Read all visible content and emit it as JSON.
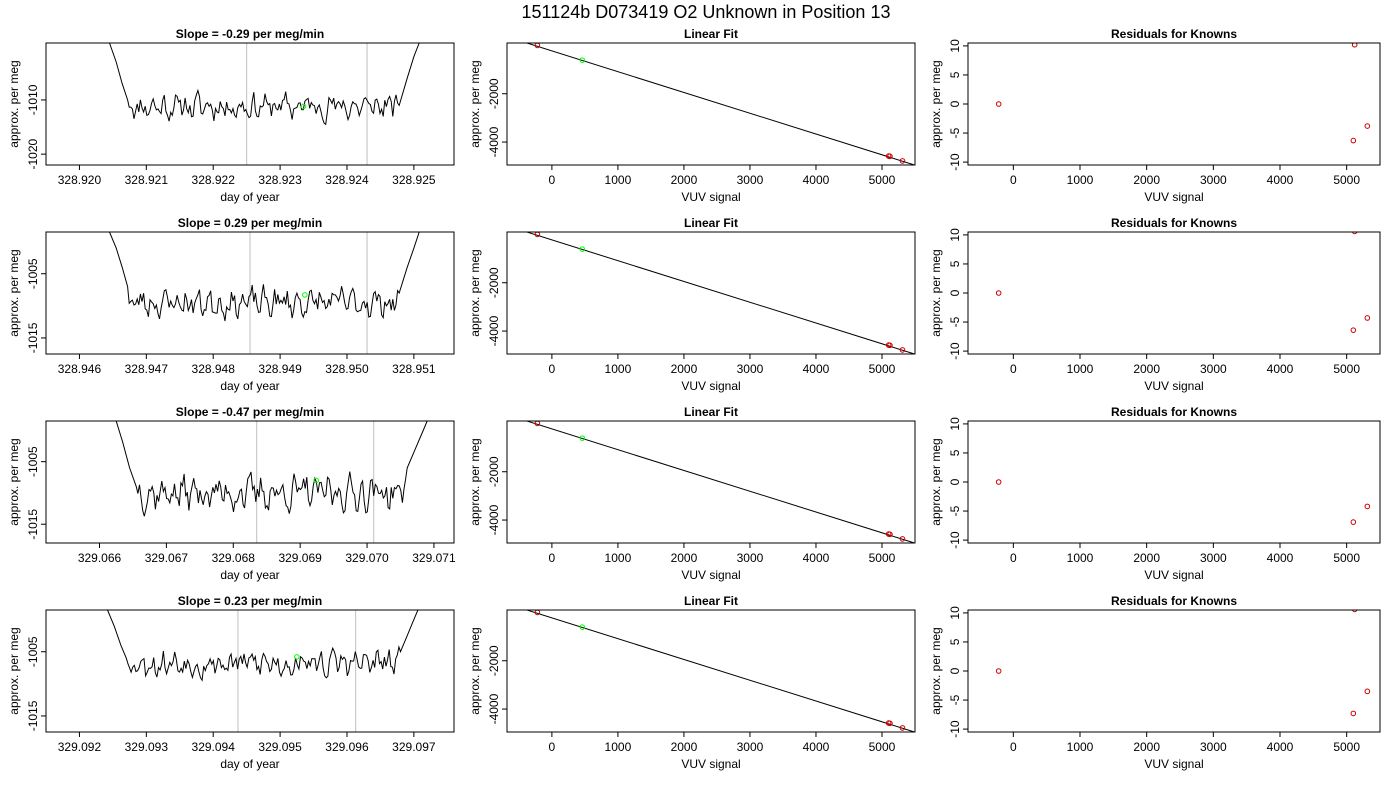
{
  "figure": {
    "title": "151124b      D073419    O2 Unknown in Position  13"
  },
  "chart_data": [
    {
      "type": "line",
      "row": 0,
      "col": 0,
      "title": "Slope =  -0.29  per meg/min",
      "xlabel": "day of year",
      "ylabel": "approx. per meg",
      "xlim": [
        328.9195,
        328.9256
      ],
      "ylim": [
        -1022,
        -999.5
      ],
      "xticks": [
        328.92,
        328.921,
        328.922,
        328.923,
        328.924,
        328.925
      ],
      "xtick_labels": [
        "328.920",
        "328.921",
        "328.922",
        "328.923",
        "328.924",
        "328.925"
      ],
      "yticks": [
        -1010,
        -1020
      ],
      "ytick_labels": [
        "-1010",
        "-1020"
      ],
      "vlines": [
        328.9225,
        328.9243
      ],
      "marker": {
        "x": 328.92335,
        "y": -1011.2,
        "color": "#00ff00"
      },
      "trace": {
        "x_start": 328.92072,
        "x_end": 328.92478,
        "mean": -1011.2,
        "noise": 1.7,
        "seed": 11,
        "start_tail": [
          [
            328.92045,
            -999.5
          ],
          [
            328.92055,
            -1003
          ],
          [
            328.92064,
            -1007
          ],
          [
            328.92072,
            -1010
          ]
        ],
        "end_tail": [
          [
            328.92478,
            -1011
          ],
          [
            328.9249,
            -1006
          ],
          [
            328.925,
            -1002
          ],
          [
            328.92508,
            -999.5
          ]
        ]
      }
    },
    {
      "type": "scatter",
      "row": 0,
      "col": 1,
      "title": "Linear Fit",
      "xlabel": "VUV signal",
      "ylabel": "approx. per meg",
      "xlim": [
        -680,
        5500
      ],
      "ylim": [
        -4950,
        100
      ],
      "xticks": [
        0,
        1000,
        2000,
        3000,
        4000,
        5000
      ],
      "xtick_labels": [
        "0",
        "1000",
        "2000",
        "3000",
        "4000",
        "5000"
      ],
      "yticks": [
        -2000,
        -4000
      ],
      "ytick_labels": [
        "-2000",
        "-4000"
      ],
      "fit_line": [
        [
          -500,
          204
        ],
        [
          5500,
          -4958
        ]
      ],
      "knowns": [
        {
          "x": -220,
          "y": 0
        },
        {
          "x": 5100,
          "y": -4580
        },
        {
          "x": 5120,
          "y": -4590
        },
        {
          "x": 5310,
          "y": -4780
        }
      ],
      "unknown": {
        "x": 460,
        "y": -610
      }
    },
    {
      "type": "scatter",
      "row": 0,
      "col": 2,
      "title": "Residuals for Knowns",
      "xlabel": "VUV signal",
      "ylabel": "approx. per meg",
      "xlim": [
        -680,
        5500
      ],
      "ylim": [
        -10.5,
        10.5
      ],
      "xticks": [
        0,
        1000,
        2000,
        3000,
        4000,
        5000
      ],
      "xtick_labels": [
        "0",
        "1000",
        "2000",
        "3000",
        "4000",
        "5000"
      ],
      "yticks": [
        10,
        5,
        0,
        -5,
        -10
      ],
      "ytick_labels": [
        "10",
        "5",
        "0",
        "-5",
        "-10"
      ],
      "points": [
        {
          "x": -220,
          "y": 0
        },
        {
          "x": 5120,
          "y": 10.2
        },
        {
          "x": 5100,
          "y": -6.3
        },
        {
          "x": 5310,
          "y": -3.8
        }
      ]
    },
    {
      "type": "line",
      "row": 1,
      "col": 0,
      "title": "Slope =  0.29  per meg/min",
      "xlabel": "day of year",
      "ylabel": "approx. per meg",
      "xlim": [
        328.9455,
        328.9516
      ],
      "ylim": [
        -1017.5,
        -998.5
      ],
      "xticks": [
        328.946,
        328.947,
        328.948,
        328.949,
        328.95,
        328.951
      ],
      "xtick_labels": [
        "328.946",
        "328.947",
        "328.948",
        "328.949",
        "328.950",
        "328.951"
      ],
      "yticks": [
        -1005,
        -1015
      ],
      "ytick_labels": [
        "-1005",
        "-1015"
      ],
      "vlines": [
        328.94855,
        328.9503
      ],
      "marker": {
        "x": 328.94937,
        "y": -1008.3,
        "color": "#00ff00"
      },
      "trace": {
        "x_start": 328.94672,
        "x_end": 328.95078,
        "mean": -1009.5,
        "noise": 1.6,
        "seed": 23,
        "start_tail": [
          [
            328.94645,
            -998.5
          ],
          [
            328.94655,
            -1001
          ],
          [
            328.94664,
            -1004
          ],
          [
            328.94672,
            -1007
          ]
        ],
        "end_tail": [
          [
            328.95078,
            -1008
          ],
          [
            328.9509,
            -1004
          ],
          [
            328.951,
            -1001
          ],
          [
            328.95108,
            -998.5
          ]
        ]
      }
    },
    {
      "type": "scatter",
      "row": 1,
      "col": 1,
      "title": "Linear Fit",
      "xlabel": "VUV signal",
      "ylabel": "approx. per meg",
      "xlim": [
        -680,
        5500
      ],
      "ylim": [
        -4950,
        100
      ],
      "xticks": [
        0,
        1000,
        2000,
        3000,
        4000,
        5000
      ],
      "xtick_labels": [
        "0",
        "1000",
        "2000",
        "3000",
        "4000",
        "5000"
      ],
      "yticks": [
        -2000,
        -4000
      ],
      "ytick_labels": [
        "-2000",
        "-4000"
      ],
      "fit_line": [
        [
          -500,
          204
        ],
        [
          5500,
          -4958
        ]
      ],
      "knowns": [
        {
          "x": -220,
          "y": 0
        },
        {
          "x": 5100,
          "y": -4580
        },
        {
          "x": 5120,
          "y": -4590
        },
        {
          "x": 5310,
          "y": -4780
        }
      ],
      "unknown": {
        "x": 460,
        "y": -610
      }
    },
    {
      "type": "scatter",
      "row": 1,
      "col": 2,
      "title": "Residuals for Knowns",
      "xlabel": "VUV signal",
      "ylabel": "approx. per meg",
      "xlim": [
        -680,
        5500
      ],
      "ylim": [
        -10.5,
        10.5
      ],
      "xticks": [
        0,
        1000,
        2000,
        3000,
        4000,
        5000
      ],
      "xtick_labels": [
        "0",
        "1000",
        "2000",
        "3000",
        "4000",
        "5000"
      ],
      "yticks": [
        10,
        5,
        0,
        -5,
        -10
      ],
      "ytick_labels": [
        "10",
        "5",
        "0",
        "-5",
        "-10"
      ],
      "points": [
        {
          "x": -220,
          "y": 0
        },
        {
          "x": 5120,
          "y": 10.6
        },
        {
          "x": 5100,
          "y": -6.4
        },
        {
          "x": 5310,
          "y": -4.3
        }
      ]
    },
    {
      "type": "line",
      "row": 2,
      "col": 0,
      "title": "Slope =  -0.47  per meg/min",
      "xlabel": "day of year",
      "ylabel": "approx. per meg",
      "xlim": [
        329.0652,
        329.0713
      ],
      "ylim": [
        -1018,
        -998.5
      ],
      "xticks": [
        329.066,
        329.067,
        329.068,
        329.069,
        329.07,
        329.071
      ],
      "xtick_labels": [
        "329.066",
        "329.067",
        "329.068",
        "329.069",
        "329.070",
        "329.071"
      ],
      "yticks": [
        -1005,
        -1015
      ],
      "ytick_labels": [
        "-1005",
        "-1015"
      ],
      "vlines": [
        329.06835,
        329.0701
      ],
      "marker": {
        "x": 329.06924,
        "y": -1008.0,
        "color": "#00ff00"
      },
      "trace": {
        "x_start": 329.06655,
        "x_end": 329.0706,
        "mean": -1010.0,
        "noise": 1.9,
        "seed": 37,
        "start_tail": [
          [
            329.06625,
            -998.5
          ],
          [
            329.06635,
            -1002
          ],
          [
            329.06645,
            -1006
          ],
          [
            329.06655,
            -1009
          ]
        ],
        "end_tail": [
          [
            329.0706,
            -1006
          ],
          [
            329.07072,
            -1003
          ],
          [
            329.07082,
            -1000.5
          ],
          [
            329.0709,
            -998.5
          ]
        ]
      }
    },
    {
      "type": "scatter",
      "row": 2,
      "col": 1,
      "title": "Linear Fit",
      "xlabel": "VUV signal",
      "ylabel": "approx. per meg",
      "xlim": [
        -680,
        5500
      ],
      "ylim": [
        -4950,
        100
      ],
      "xticks": [
        0,
        1000,
        2000,
        3000,
        4000,
        5000
      ],
      "xtick_labels": [
        "0",
        "1000",
        "2000",
        "3000",
        "4000",
        "5000"
      ],
      "yticks": [
        -2000,
        -4000
      ],
      "ytick_labels": [
        "-2000",
        "-4000"
      ],
      "fit_line": [
        [
          -500,
          204
        ],
        [
          5500,
          -4958
        ]
      ],
      "knowns": [
        {
          "x": -220,
          "y": 0
        },
        {
          "x": 5100,
          "y": -4580
        },
        {
          "x": 5120,
          "y": -4590
        },
        {
          "x": 5310,
          "y": -4780
        }
      ],
      "unknown": {
        "x": 460,
        "y": -610
      }
    },
    {
      "type": "scatter",
      "row": 2,
      "col": 2,
      "title": "Residuals for Knowns",
      "xlabel": "VUV signal",
      "ylabel": "approx. per meg",
      "xlim": [
        -680,
        5500
      ],
      "ylim": [
        -10.5,
        10.5
      ],
      "xticks": [
        0,
        1000,
        2000,
        3000,
        4000,
        5000
      ],
      "xtick_labels": [
        "0",
        "1000",
        "2000",
        "3000",
        "4000",
        "5000"
      ],
      "yticks": [
        10,
        5,
        0,
        -5,
        -10
      ],
      "ytick_labels": [
        "10",
        "5",
        "0",
        "-5",
        "-10"
      ],
      "points": [
        {
          "x": -220,
          "y": 0
        },
        {
          "x": 5100,
          "y": -6.9
        },
        {
          "x": 5310,
          "y": -4.2
        }
      ]
    },
    {
      "type": "line",
      "row": 3,
      "col": 0,
      "title": "Slope =  0.23  per meg/min",
      "xlabel": "day of year",
      "ylabel": "approx. per meg",
      "xlim": [
        329.0915,
        329.0976
      ],
      "ylim": [
        -1017.5,
        -998.5
      ],
      "xticks": [
        329.092,
        329.093,
        329.094,
        329.095,
        329.096,
        329.097
      ],
      "xtick_labels": [
        "329.092",
        "329.093",
        "329.094",
        "329.095",
        "329.096",
        "329.097"
      ],
      "yticks": [
        -1005,
        -1015
      ],
      "ytick_labels": [
        "-1005",
        "-1015"
      ],
      "vlines": [
        329.09437,
        329.09613
      ],
      "marker": {
        "x": 329.09525,
        "y": -1005.8,
        "color": "#00ff00"
      },
      "trace": {
        "x_start": 329.0927,
        "x_end": 329.0968,
        "mean": -1006.8,
        "noise": 1.5,
        "seed": 53,
        "start_tail": [
          [
            329.09242,
            -998.5
          ],
          [
            329.09252,
            -1001
          ],
          [
            329.09262,
            -1004
          ],
          [
            329.0927,
            -1006
          ]
        ],
        "end_tail": [
          [
            329.0968,
            -1005
          ],
          [
            329.0969,
            -1002.5
          ],
          [
            329.09698,
            -1000.5
          ],
          [
            329.09706,
            -998.5
          ]
        ]
      }
    },
    {
      "type": "scatter",
      "row": 3,
      "col": 1,
      "title": "Linear Fit",
      "xlabel": "VUV signal",
      "ylabel": "approx. per meg",
      "xlim": [
        -680,
        5500
      ],
      "ylim": [
        -4950,
        100
      ],
      "xticks": [
        0,
        1000,
        2000,
        3000,
        4000,
        5000
      ],
      "xtick_labels": [
        "0",
        "1000",
        "2000",
        "3000",
        "4000",
        "5000"
      ],
      "yticks": [
        -2000,
        -4000
      ],
      "ytick_labels": [
        "-2000",
        "-4000"
      ],
      "fit_line": [
        [
          -500,
          204
        ],
        [
          5500,
          -4958
        ]
      ],
      "knowns": [
        {
          "x": -220,
          "y": 0
        },
        {
          "x": 5100,
          "y": -4580
        },
        {
          "x": 5120,
          "y": -4590
        },
        {
          "x": 5310,
          "y": -4780
        }
      ],
      "unknown": {
        "x": 460,
        "y": -610
      }
    },
    {
      "type": "scatter",
      "row": 3,
      "col": 2,
      "title": "Residuals for Knowns",
      "xlabel": "VUV signal",
      "ylabel": "approx. per meg",
      "xlim": [
        -680,
        5500
      ],
      "ylim": [
        -10.5,
        10.5
      ],
      "xticks": [
        0,
        1000,
        2000,
        3000,
        4000,
        5000
      ],
      "xtick_labels": [
        "0",
        "1000",
        "2000",
        "3000",
        "4000",
        "5000"
      ],
      "yticks": [
        10,
        5,
        0,
        -5,
        -10
      ],
      "ytick_labels": [
        "10",
        "5",
        "0",
        "-5",
        "-10"
      ],
      "points": [
        {
          "x": -220,
          "y": 0
        },
        {
          "x": 5120,
          "y": 10.6
        },
        {
          "x": 5100,
          "y": -7.3
        },
        {
          "x": 5310,
          "y": -3.5
        }
      ]
    }
  ],
  "colors": {
    "line": "#000000",
    "known_point": "#cc0000",
    "unknown_point": "#00ff00",
    "vline": "#bfbfbf",
    "axis": "#000000"
  }
}
